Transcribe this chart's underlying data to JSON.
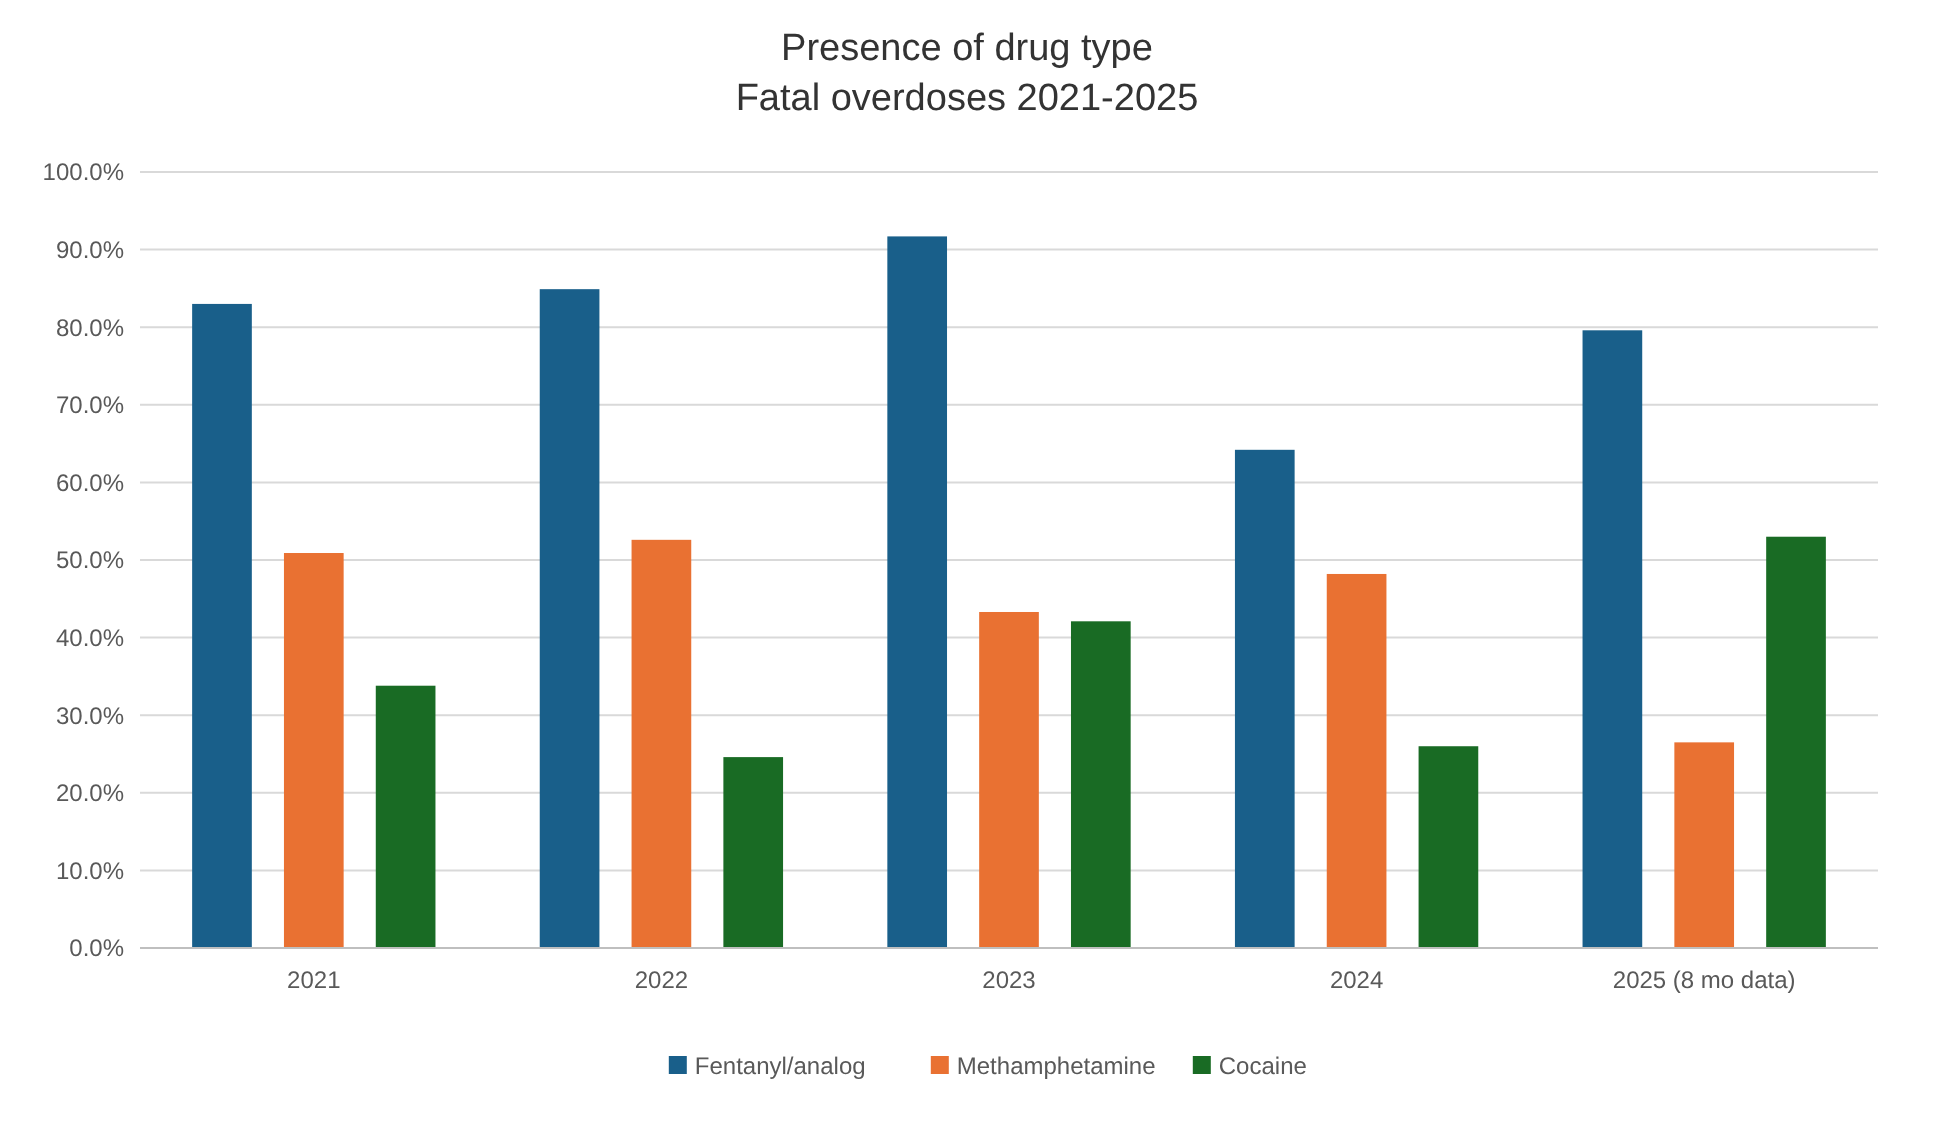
{
  "chart_data": {
    "type": "bar",
    "title": "Presence of drug type\nFatal overdoses 2021-2025",
    "categories": [
      "2021",
      "2022",
      "2023",
      "2024",
      "2025 (8 mo data)"
    ],
    "series": [
      {
        "name": "Fentanyl/analog",
        "color": "#195f8a",
        "values": [
          83.0,
          84.9,
          91.7,
          64.2,
          79.6
        ]
      },
      {
        "name": "Methamphetamine",
        "color": "#e97132",
        "values": [
          50.9,
          52.6,
          43.3,
          48.2,
          26.5
        ]
      },
      {
        "name": "Cocaine",
        "color": "#196b24",
        "values": [
          33.8,
          24.6,
          42.1,
          26.0,
          53.0
        ]
      }
    ],
    "ylim": [
      0,
      100
    ],
    "yticks": [
      {
        "value": 0,
        "label": "0.0%"
      },
      {
        "value": 10,
        "label": "10.0%"
      },
      {
        "value": 20,
        "label": "20.0%"
      },
      {
        "value": 30,
        "label": "30.0%"
      },
      {
        "value": 40,
        "label": "40.0%"
      },
      {
        "value": 50,
        "label": "50.0%"
      },
      {
        "value": 60,
        "label": "60.0%"
      },
      {
        "value": 70,
        "label": "70.0%"
      },
      {
        "value": 80,
        "label": "80.0%"
      },
      {
        "value": 90,
        "label": "90.0%"
      },
      {
        "value": 100,
        "label": "100.0%"
      }
    ],
    "grid": "y",
    "legend": "bottom"
  }
}
